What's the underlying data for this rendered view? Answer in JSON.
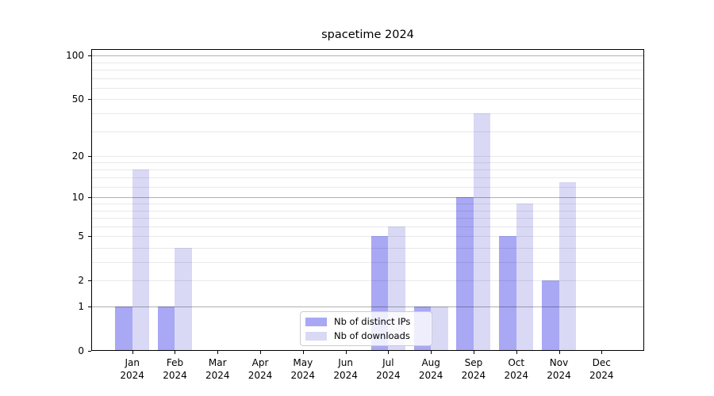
{
  "title": "spacetime 2024",
  "colors": {
    "background": "#ffffff",
    "bar_distinct_ips": "#a8a8f4",
    "bar_downloads": "#d9d9f6",
    "grid_major": "rgba(0,0,0,0.31)",
    "grid_minor": "rgba(0,0,0,0.085)",
    "spine": "#000000"
  },
  "chart_data": {
    "type": "bar",
    "title": "spacetime 2024",
    "xlabel": "",
    "ylabel": "",
    "x_year": "2024",
    "categories": [
      "Jan",
      "Feb",
      "Mar",
      "Apr",
      "May",
      "Jun",
      "Jul",
      "Aug",
      "Sep",
      "Oct",
      "Nov",
      "Dec"
    ],
    "series": [
      {
        "name": "Nb of distinct IPs",
        "color": "#a8a8f4",
        "values": [
          1,
          1,
          0,
          0,
          0,
          0,
          5,
          1,
          10,
          5,
          2,
          0
        ]
      },
      {
        "name": "Nb of downloads",
        "color": "#d9d9f6",
        "values": [
          16,
          4,
          0,
          0,
          0,
          0,
          6,
          1,
          40,
          9,
          13,
          0
        ]
      }
    ],
    "yscale": "log1p",
    "ylim": [
      0,
      110
    ],
    "yticks": [
      "0",
      "1",
      "2",
      "5",
      "10",
      "20",
      "50",
      "100"
    ],
    "gridlines": {
      "major": [
        1,
        10,
        100
      ],
      "minor": [
        2,
        3,
        4,
        5,
        6,
        7,
        8,
        9,
        12,
        14,
        16,
        18,
        20,
        30,
        40,
        50,
        60,
        70,
        80,
        90
      ]
    },
    "legend": {
      "position": "lower center",
      "entries": [
        "Nb of distinct IPs",
        "Nb of downloads"
      ]
    }
  }
}
